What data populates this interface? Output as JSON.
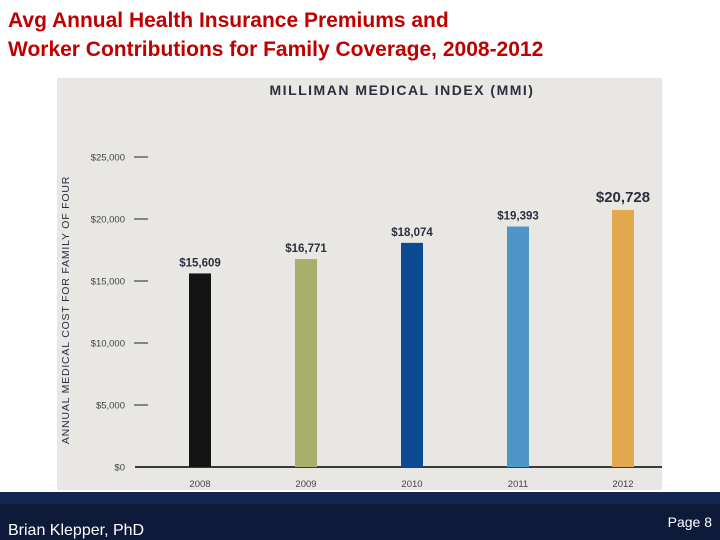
{
  "slide": {
    "title_line1": "Avg Annual Health Insurance Premiums and",
    "title_line2": "Worker Contributions for Family Coverage, 2008-2012"
  },
  "chart_data": {
    "type": "bar",
    "title": "MILLIMAN MEDICAL INDEX (MMI)",
    "xlabel": "",
    "ylabel": "ANNUAL MEDICAL COST FOR FAMILY OF FOUR",
    "categories": [
      "2008",
      "2009",
      "2010",
      "2011",
      "2012"
    ],
    "values": [
      15609,
      16771,
      18074,
      19393,
      20728
    ],
    "value_labels": [
      "$15,609",
      "$16,771",
      "$18,074",
      "$19,393",
      "$20,728"
    ],
    "bar_colors": [
      "#141414",
      "#a9ae6d",
      "#0d4a94",
      "#4f96c8",
      "#e2a94e"
    ],
    "ylim": [
      0,
      25000
    ],
    "yticks": [
      0,
      5000,
      10000,
      15000,
      20000,
      25000
    ],
    "ytick_labels": [
      "$0",
      "$5,000",
      "$10,000",
      "$15,000",
      "$20,000",
      "$25,000"
    ],
    "grid": false
  },
  "footer": {
    "author": "Brian Klepper, PhD",
    "page": "Page 8"
  }
}
